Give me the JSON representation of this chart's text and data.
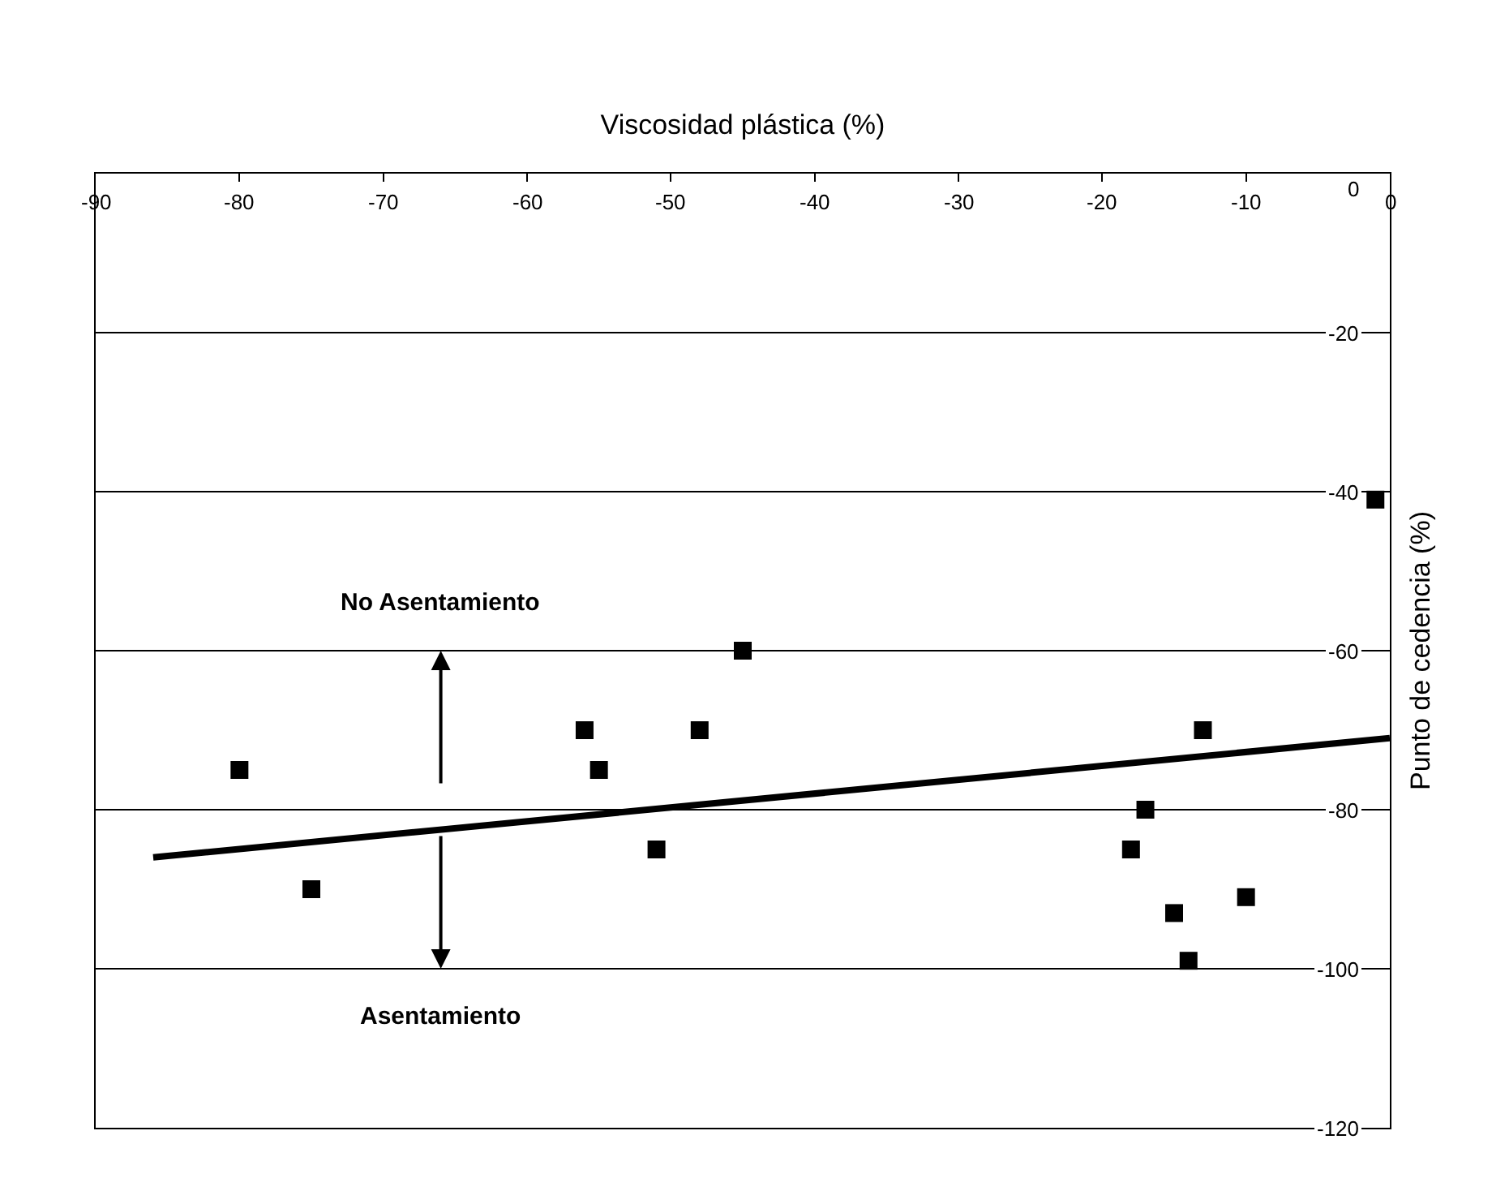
{
  "chart_data": {
    "type": "scatter",
    "xlabel": "Viscosidad plástica (%)",
    "ylabel": "Punto de cedencia (%)",
    "xlim": [
      -90,
      0
    ],
    "xticks": [
      -90,
      -80,
      -70,
      -60,
      -50,
      -40,
      -30,
      -20,
      -10,
      0
    ],
    "ylim": [
      -120,
      0
    ],
    "yticks": [
      -120,
      -100,
      -80,
      -60,
      -40,
      -20,
      0
    ],
    "grid": "y",
    "marker": "square",
    "series": [
      {
        "color": "#000000",
        "x": [
          -80,
          -75,
          -56,
          -55,
          -51,
          -48,
          -45,
          -18,
          -17,
          -15,
          -14,
          -13,
          -10,
          -1
        ],
        "values": [
          -75,
          -90,
          -70,
          -75,
          -85,
          -70,
          -60,
          -85,
          -80,
          -93,
          -99,
          -70,
          -91,
          -41
        ]
      },
      {
        "type": "line",
        "color": "#000000",
        "marker": "none",
        "x": [
          -86,
          0
        ],
        "values": [
          -86,
          -71
        ]
      }
    ],
    "annotations": [
      "No Asentamiento",
      "Asentamiento"
    ]
  }
}
